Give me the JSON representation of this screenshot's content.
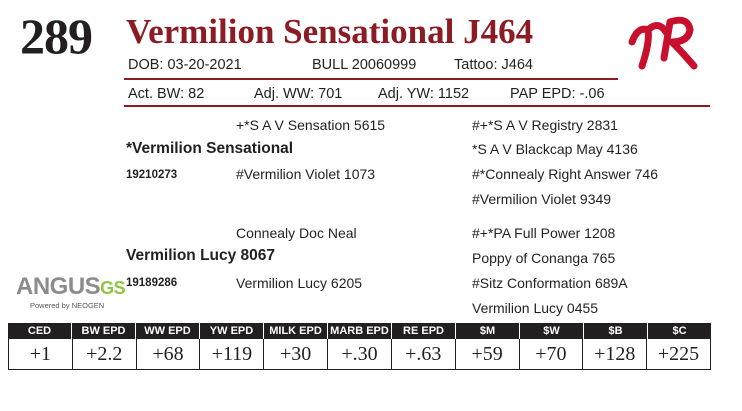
{
  "lot": "289",
  "name": "Vermilion Sensational J464",
  "info": {
    "dob": "DOB:   03-20-2021",
    "sex_reg": "BULL   20060999",
    "tattoo": "Tattoo:    J464"
  },
  "weights": {
    "act_bw": "Act. BW: 82",
    "adj_ww": "Adj. WW: 701",
    "adj_yw": "Adj. YW: 1152",
    "pap": "PAP EPD: -.06"
  },
  "pedigree": {
    "sire": "*Vermilion Sensational",
    "sire_reg": "19210273",
    "sire_sire": "+*S A V Sensation 5615",
    "sire_dam": "#Vermilion Violet 1073",
    "sss": "#+*S A V Registry 2831",
    "ssd": "*S A V Blackcap May 4136",
    "sds": "#*Connealy Right Answer 746",
    "sdd": "#Vermilion Violet 9349",
    "dam": "Vermilion Lucy 8067",
    "dam_reg": "19189286",
    "dam_sire": "Connealy Doc Neal",
    "dam_dam": "Vermilion Lucy 6205",
    "dss": "#+*PA Full Power 1208",
    "dsd": "Poppy of Conanga 765",
    "dds": "#Sitz Conformation 689A",
    "ddd": "Vermilion Lucy 0455"
  },
  "logo": {
    "brand_text": "ANGUS",
    "brand_suffix": "GS",
    "tagline": "Powered by NEOGEN",
    "ranch_mark_color": "#c8102e"
  },
  "epd": {
    "headers": [
      "CED",
      "BW EPD",
      "WW EPD",
      "YW EPD",
      "MILK EPD",
      "MARB EPD",
      "RE EPD",
      "$M",
      "$W",
      "$B",
      "$C"
    ],
    "values": [
      "+1",
      "+2.2",
      "+68",
      "+119",
      "+30",
      "+.30",
      "+.63",
      "+59",
      "+70",
      "+128",
      "+225"
    ]
  }
}
